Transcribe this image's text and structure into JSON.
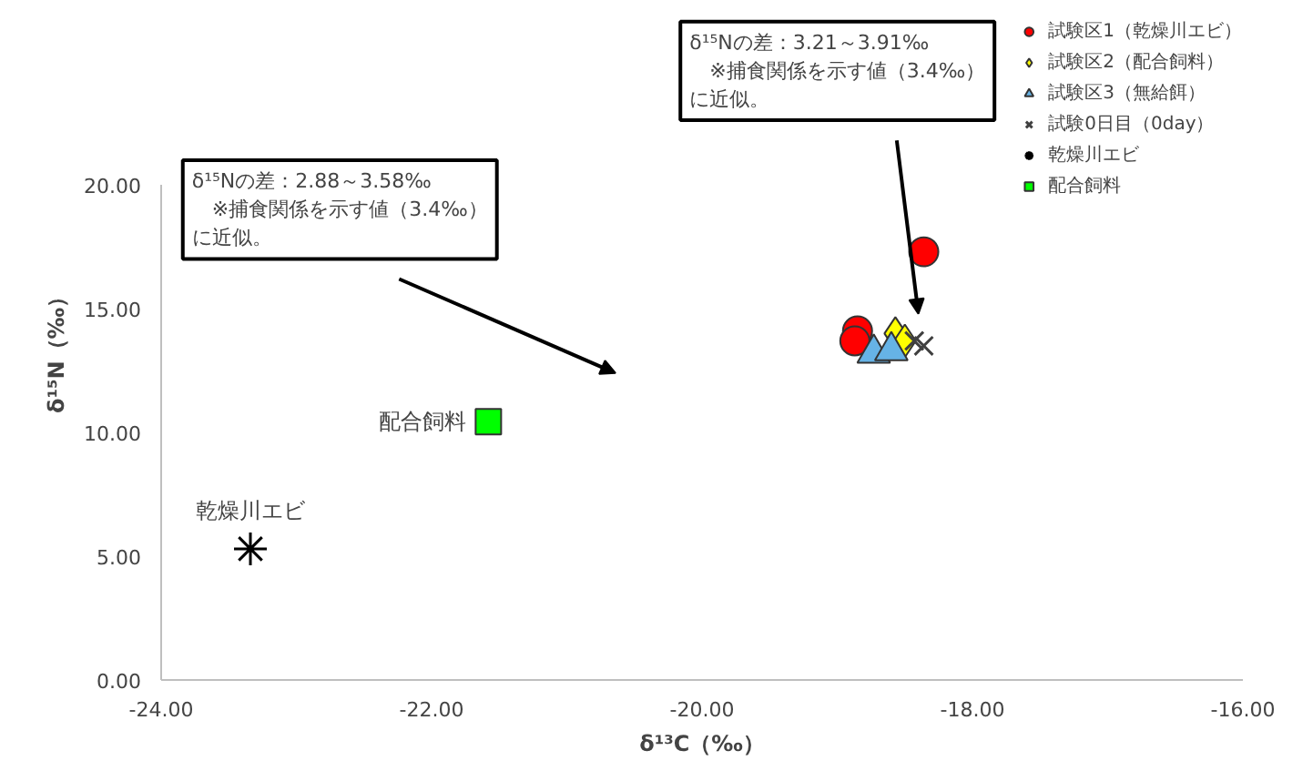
{
  "chart_data": {
    "type": "scatter",
    "xlabel": "δ¹³C（‰）",
    "ylabel": "δ¹⁵N（‰）",
    "xlim": [
      -24,
      -16
    ],
    "ylim": [
      0,
      20
    ],
    "xticks": [
      {
        "value": -24,
        "label": "-24.00"
      },
      {
        "value": -22,
        "label": "-22.00"
      },
      {
        "value": -20,
        "label": "-20.00"
      },
      {
        "value": -18,
        "label": "-18.00"
      },
      {
        "value": -16,
        "label": "-16.00"
      }
    ],
    "yticks": [
      {
        "value": 0,
        "label": "0.00"
      },
      {
        "value": 5,
        "label": "5.00"
      },
      {
        "value": 10,
        "label": "10.00"
      },
      {
        "value": 15,
        "label": "15.00"
      },
      {
        "value": 20,
        "label": "20.00"
      }
    ],
    "grid": false,
    "legend": "top right",
    "series": [
      {
        "name": "試験区1（乾燥川エビ）",
        "color": "#ff0000",
        "marker": "circle",
        "x": [
          -18.36,
          -18.85,
          -18.87
        ],
        "values": [
          17.3,
          14.1,
          13.7
        ]
      },
      {
        "name": "試験区2（配合飼料）",
        "color": "#ffff00",
        "marker": "diamond",
        "x": [
          -18.57,
          -18.5
        ],
        "values": [
          14.0,
          13.7
        ]
      },
      {
        "name": "試験区3（無給餌）",
        "color": "#66b3e6",
        "marker": "triangle",
        "x": [
          -18.73,
          -18.6
        ],
        "values": [
          13.2,
          13.3
        ]
      },
      {
        "name": "試験0日目（0day）",
        "color": "#404040",
        "marker": "cross",
        "x": [
          -18.43,
          -18.36
        ],
        "values": [
          13.7,
          13.5
        ]
      },
      {
        "name": "乾燥川エビ",
        "color": "#000000",
        "marker": "cross",
        "x": [
          -23.34
        ],
        "values": [
          5.3
        ]
      },
      {
        "name": "配合飼料",
        "color": "#00ff00",
        "marker": "square",
        "x": [
          -21.58
        ],
        "values": [
          10.44
        ]
      }
    ],
    "annotations": [
      {
        "text": "乾燥川エビ",
        "x": -23.34,
        "y": 5.3
      },
      {
        "text": "配合飼料",
        "x": -21.58,
        "y": 10.44
      },
      "δ¹⁵Nの差：2.88～3.58‰　※捕食関係を示す値（3.4‰）に近似。",
      "δ¹⁵Nの差：3.21～3.91‰　※捕食関係を示す値（3.4‰）に近似。"
    ]
  }
}
